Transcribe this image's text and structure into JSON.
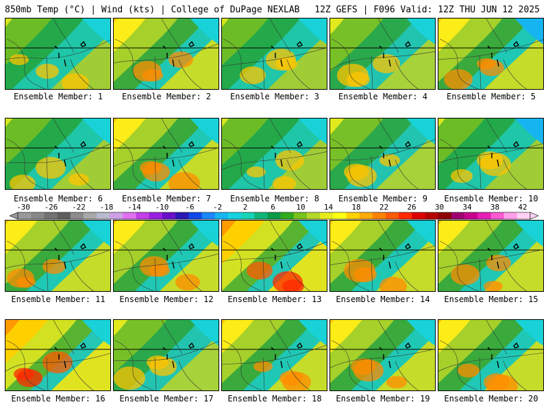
{
  "header": {
    "left": "850mb Temp (°C) | Wind (kts) | College of DuPage NEXLAB",
    "right": "12Z GEFS | F096 Valid: 12Z THU JUN 12 2025"
  },
  "members": [
    {
      "label": "Ensemble Member: 1",
      "style": "cool"
    },
    {
      "label": "Ensemble Member: 2",
      "style": "warm"
    },
    {
      "label": "Ensemble Member: 3",
      "style": "cool"
    },
    {
      "label": "Ensemble Member: 4",
      "style": "mild"
    },
    {
      "label": "Ensemble Member: 5",
      "style": "warm"
    },
    {
      "label": "Ensemble Member: 6",
      "style": "cool"
    },
    {
      "label": "Ensemble Member: 7",
      "style": "warm"
    },
    {
      "label": "Ensemble Member: 8",
      "style": "cool"
    },
    {
      "label": "Ensemble Member: 9",
      "style": "mild"
    },
    {
      "label": "Ensemble Member: 10",
      "style": "cool"
    },
    {
      "label": "Ensemble Member: 11",
      "style": "warm"
    },
    {
      "label": "Ensemble Member: 12",
      "style": "warm"
    },
    {
      "label": "Ensemble Member: 13",
      "style": "hot"
    },
    {
      "label": "Ensemble Member: 14",
      "style": "warm"
    },
    {
      "label": "Ensemble Member: 15",
      "style": "warm"
    },
    {
      "label": "Ensemble Member: 16",
      "style": "hot"
    },
    {
      "label": "Ensemble Member: 17",
      "style": "mild"
    },
    {
      "label": "Ensemble Member: 18",
      "style": "warm"
    },
    {
      "label": "Ensemble Member: 19",
      "style": "warm"
    },
    {
      "label": "Ensemble Member: 20",
      "style": "warm"
    }
  ],
  "colorbar": {
    "labels": [
      "-30",
      "-26",
      "-22",
      "-18",
      "-14",
      "-10",
      "-6",
      "-2",
      "2",
      "6",
      "10",
      "14",
      "18",
      "22",
      "26",
      "30",
      "34",
      "38",
      "42"
    ],
    "colors": [
      "#9a9a9a",
      "#888888",
      "#737373",
      "#5e5e5e",
      "#8c8c8c",
      "#a9a9a9",
      "#b9b9cf",
      "#cfa0e6",
      "#e070f0",
      "#c23ee6",
      "#9a1ee0",
      "#6a10c8",
      "#2a18b4",
      "#1048e8",
      "#1c86ff",
      "#18b4f0",
      "#14d2e0",
      "#18d2b4",
      "#10b478",
      "#0a9a46",
      "#30aa1e",
      "#78c21e",
      "#b4d72a",
      "#e6eb1e",
      "#ffff14",
      "#ffd200",
      "#ffaa00",
      "#ff8200",
      "#ff5a00",
      "#ff2800",
      "#dc0000",
      "#b40000",
      "#8c0000",
      "#a0006e",
      "#c8008c",
      "#e61eb4",
      "#ff5ad2",
      "#ffa0eb",
      "#ffd2f5"
    ]
  }
}
